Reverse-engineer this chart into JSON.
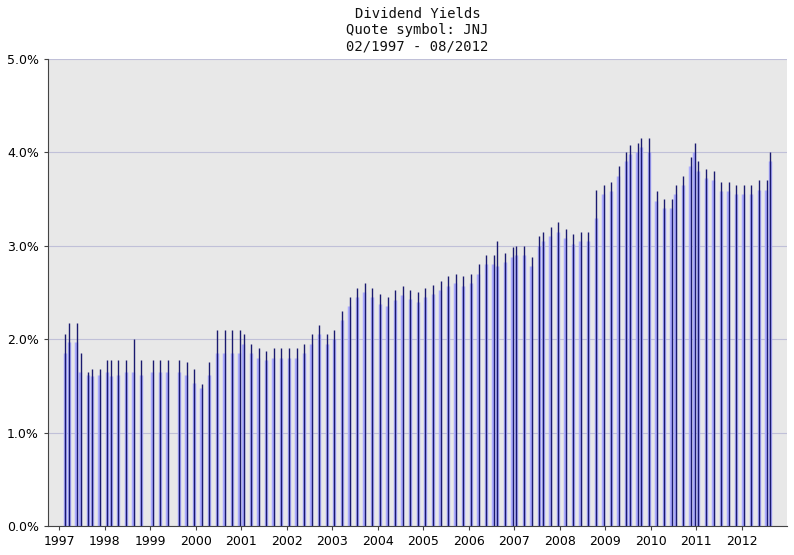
{
  "title_line1": "Dividend Yields",
  "title_line2": "Quote symbol: JNJ",
  "title_line3": "02/1997 - 08/2012",
  "background_color": "#e8e8e8",
  "bar_color_light": "#aaaaff",
  "bar_color_dark": "#1a1a6e",
  "ylim": [
    0.0,
    5.0
  ],
  "yticks": [
    0.0,
    1.0,
    2.0,
    3.0,
    4.0,
    5.0
  ],
  "grid_color": "#c0c0d8",
  "data": [
    [
      1997,
      2,
      1.85,
      2.05
    ],
    [
      1997,
      3,
      1.97,
      2.17
    ],
    [
      1997,
      5,
      1.97,
      2.17
    ],
    [
      1997,
      6,
      1.65,
      1.85
    ],
    [
      1997,
      8,
      1.62,
      1.65
    ],
    [
      1997,
      9,
      1.6,
      1.68
    ],
    [
      1997,
      11,
      1.62,
      1.68
    ],
    [
      1998,
      1,
      1.65,
      1.78
    ],
    [
      1998,
      2,
      1.6,
      1.78
    ],
    [
      1998,
      4,
      1.62,
      1.78
    ],
    [
      1998,
      6,
      1.65,
      1.78
    ],
    [
      1998,
      8,
      1.65,
      2.0
    ],
    [
      1998,
      10,
      1.62,
      1.78
    ],
    [
      1999,
      1,
      1.65,
      1.78
    ],
    [
      1999,
      3,
      1.65,
      1.78
    ],
    [
      1999,
      5,
      1.65,
      1.78
    ],
    [
      1999,
      8,
      1.65,
      1.78
    ],
    [
      1999,
      10,
      1.62,
      1.75
    ],
    [
      1999,
      12,
      1.53,
      1.68
    ],
    [
      2000,
      2,
      1.48,
      1.52
    ],
    [
      2000,
      4,
      1.62,
      1.75
    ],
    [
      2000,
      6,
      1.85,
      2.1
    ],
    [
      2000,
      8,
      1.85,
      2.1
    ],
    [
      2000,
      10,
      1.85,
      2.1
    ],
    [
      2000,
      12,
      1.85,
      2.1
    ],
    [
      2001,
      1,
      1.95,
      2.05
    ],
    [
      2001,
      3,
      1.85,
      1.95
    ],
    [
      2001,
      5,
      1.8,
      1.9
    ],
    [
      2001,
      7,
      1.78,
      1.87
    ],
    [
      2001,
      9,
      1.8,
      1.9
    ],
    [
      2001,
      11,
      1.8,
      1.9
    ],
    [
      2002,
      1,
      1.8,
      1.9
    ],
    [
      2002,
      3,
      1.8,
      1.9
    ],
    [
      2002,
      5,
      1.85,
      1.95
    ],
    [
      2002,
      7,
      1.95,
      2.05
    ],
    [
      2002,
      9,
      2.05,
      2.15
    ],
    [
      2002,
      11,
      1.95,
      2.05
    ],
    [
      2003,
      1,
      2.0,
      2.1
    ],
    [
      2003,
      3,
      2.2,
      2.3
    ],
    [
      2003,
      5,
      2.35,
      2.45
    ],
    [
      2003,
      7,
      2.45,
      2.55
    ],
    [
      2003,
      9,
      2.5,
      2.6
    ],
    [
      2003,
      11,
      2.45,
      2.55
    ],
    [
      2004,
      1,
      2.38,
      2.48
    ],
    [
      2004,
      3,
      2.35,
      2.45
    ],
    [
      2004,
      5,
      2.42,
      2.52
    ],
    [
      2004,
      7,
      2.47,
      2.57
    ],
    [
      2004,
      9,
      2.43,
      2.53
    ],
    [
      2004,
      11,
      2.4,
      2.5
    ],
    [
      2005,
      1,
      2.45,
      2.55
    ],
    [
      2005,
      3,
      2.48,
      2.58
    ],
    [
      2005,
      5,
      2.52,
      2.62
    ],
    [
      2005,
      7,
      2.57,
      2.67
    ],
    [
      2005,
      9,
      2.6,
      2.7
    ],
    [
      2005,
      11,
      2.57,
      2.67
    ],
    [
      2006,
      1,
      2.6,
      2.7
    ],
    [
      2006,
      3,
      2.7,
      2.8
    ],
    [
      2006,
      5,
      2.8,
      2.9
    ],
    [
      2006,
      7,
      2.8,
      2.9
    ],
    [
      2006,
      8,
      2.78,
      3.05
    ],
    [
      2006,
      10,
      2.82,
      2.92
    ],
    [
      2006,
      12,
      2.88,
      2.98
    ],
    [
      2007,
      1,
      2.9,
      3.0
    ],
    [
      2007,
      3,
      2.9,
      3.0
    ],
    [
      2007,
      5,
      2.78,
      2.88
    ],
    [
      2007,
      7,
      3.0,
      3.1
    ],
    [
      2007,
      8,
      3.05,
      3.15
    ],
    [
      2007,
      10,
      3.1,
      3.2
    ],
    [
      2007,
      12,
      3.15,
      3.25
    ],
    [
      2008,
      2,
      3.08,
      3.18
    ],
    [
      2008,
      4,
      3.02,
      3.12
    ],
    [
      2008,
      6,
      3.05,
      3.15
    ],
    [
      2008,
      8,
      3.05,
      3.15
    ],
    [
      2008,
      10,
      3.3,
      3.6
    ],
    [
      2008,
      12,
      3.55,
      3.65
    ],
    [
      2009,
      2,
      3.58,
      3.68
    ],
    [
      2009,
      4,
      3.75,
      3.85
    ],
    [
      2009,
      6,
      3.9,
      4.0
    ],
    [
      2009,
      7,
      3.98,
      4.08
    ],
    [
      2009,
      9,
      4.0,
      4.1
    ],
    [
      2009,
      10,
      4.05,
      4.15
    ],
    [
      2009,
      12,
      4.0,
      4.15
    ],
    [
      2010,
      2,
      3.48,
      3.58
    ],
    [
      2010,
      4,
      3.4,
      3.5
    ],
    [
      2010,
      6,
      3.4,
      3.5
    ],
    [
      2010,
      7,
      3.55,
      3.65
    ],
    [
      2010,
      9,
      3.65,
      3.75
    ],
    [
      2010,
      11,
      3.85,
      3.95
    ],
    [
      2010,
      12,
      4.0,
      4.1
    ],
    [
      2011,
      1,
      3.8,
      3.9
    ],
    [
      2011,
      3,
      3.72,
      3.82
    ],
    [
      2011,
      5,
      3.7,
      3.8
    ],
    [
      2011,
      7,
      3.58,
      3.68
    ],
    [
      2011,
      9,
      3.58,
      3.68
    ],
    [
      2011,
      11,
      3.55,
      3.65
    ],
    [
      2012,
      1,
      3.55,
      3.65
    ],
    [
      2012,
      3,
      3.55,
      3.65
    ],
    [
      2012,
      5,
      3.6,
      3.7
    ],
    [
      2012,
      7,
      3.6,
      3.7
    ],
    [
      2012,
      8,
      3.9,
      4.0
    ]
  ]
}
